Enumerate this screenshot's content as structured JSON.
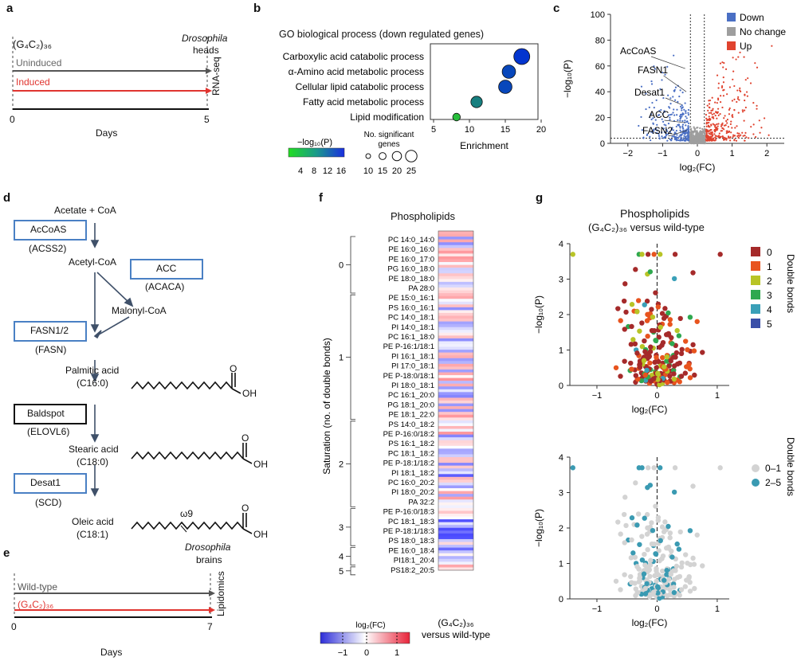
{
  "panel_labels": {
    "a": "a",
    "b": "b",
    "c": "c",
    "d": "d",
    "e": "e",
    "f": "f",
    "g": "g"
  },
  "panel_a": {
    "construct": "(G₄C₂)₃₆",
    "species": "Drosophila",
    "tissue": "heads",
    "assay": "RNA-seq",
    "uninduced": "Uninduced",
    "induced": "Induced",
    "tick0": "0",
    "tick5": "5",
    "xlabel": "Days"
  },
  "panel_b": {
    "title": "GO biological process (down regulated genes)",
    "xlabel": "Enrichment",
    "colorbar_title": "−log₁₀(P)",
    "size_title": "No. significant genes",
    "colorbar_ticks": [
      "4",
      "8",
      "12",
      "16"
    ],
    "size_ticks": [
      "10",
      "15",
      "20",
      "25"
    ],
    "x_ticks": [
      "5",
      "10",
      "15",
      "20"
    ],
    "chart_data": {
      "type": "scatter",
      "categories": [
        "Carboxylic acid catabolic process",
        "α-Amino acid metabolic process",
        "Cellular lipid catabolic process",
        "Fatty acid metabolic process",
        "Lipid modification"
      ],
      "enrichment": [
        17.3,
        15.5,
        15.0,
        11.0,
        8.2
      ],
      "neg_log10_p": [
        15,
        13.5,
        13.5,
        9,
        4
      ],
      "n_genes": [
        25,
        21,
        21,
        18,
        12
      ],
      "xlim": [
        5,
        20
      ]
    }
  },
  "panel_c": {
    "ylabel": "−log₁₀(P)",
    "xlabel": "log₂(FC)",
    "y_ticks": [
      "0",
      "20",
      "40",
      "60",
      "80",
      "100"
    ],
    "x_ticks": [
      "−2",
      "−1",
      "0",
      "1",
      "2"
    ],
    "legend": [
      {
        "label": "Down",
        "color": "#4a6fc4"
      },
      {
        "label": "No change",
        "color": "#9e9e9e"
      },
      {
        "label": "Up",
        "color": "#e0432f"
      }
    ],
    "genes": [
      "AcCoAS",
      "FASN1",
      "Desat1",
      "ACC",
      "FASN2"
    ]
  },
  "panel_d": {
    "acetate": "Acetate + CoA",
    "accoas": "AcCoAS",
    "acss2": "(ACSS2)",
    "acetyl": "Acetyl-CoA",
    "acc": "ACC",
    "acaca": "(ACACA)",
    "malonyl": "Malonyl-CoA",
    "fasn": "FASN1/2",
    "fasn_h": "(FASN)",
    "palmitic": "Palmitic acid",
    "c160": "(C16:0)",
    "baldspot": "Baldspot",
    "elovl6": "(ELOVL6)",
    "stearic": "Stearic acid",
    "c180": "(C18:0)",
    "desat1": "Desat1",
    "scd": "(SCD)",
    "oleic": "Oleic acid",
    "c181": "(C18:1)",
    "o": "O",
    "oh": "OH",
    "omega": "ω9"
  },
  "panel_e": {
    "species": "Drosophila",
    "tissue": "brains",
    "assay": "Lipidomics",
    "wildtype": "Wild-type",
    "construct": "(G₄C₂)₃₆",
    "tick0": "0",
    "tick7": "7",
    "xlabel": "Days"
  },
  "panel_f": {
    "title": "Phospholipids",
    "ylabel": "Saturation (no. of double bonds)",
    "groups": [
      "0",
      "1",
      "2",
      "3",
      "4",
      "5"
    ],
    "lipids": [
      "PC 14:0_14:0",
      "PE 16:0_16:0",
      "PE 16:0_17:0",
      "PG 16:0_18:0",
      "PE 18:0_18:0",
      "PA 28:0",
      "PE 15:0_16:1",
      "PS 16:0_16:1",
      "PC 14:0_18:1",
      "PI 14:0_18:1",
      "PC 16:1_18:0",
      "PE P-16:1/18:1",
      "PI 16:1_18:1",
      "PI 17:0_18:1",
      "PE P-18:0/18:1",
      "PI 18:0_18:1",
      "PC 16:1_20:0",
      "PG 18:1_20:0",
      "PE 18:1_22:0",
      "PS 14:0_18:2",
      "PE P-16:0/18:2",
      "PS 16:1_18:2",
      "PC 18:1_18:2",
      "PE P-18:1/18:2",
      "PI 18:1_18:2",
      "PC 16:0_20:2",
      "PI 18:0_20:2",
      "PA 32:2",
      "PE P-16:0/18:3",
      "PC 18:1_18:3",
      "PE P-18:1/18:3",
      "PS 18:0_18:3",
      "PE 16:0_18:4",
      "PI18:1_20:4",
      "PS18:2_20:5"
    ],
    "colorbar_title": "log₂(FC)",
    "colorbar_ticks": [
      "−1",
      "0",
      "1"
    ],
    "xlabel_line1": "(G₄C₂)₃₆",
    "xlabel_line2": "versus wild-type"
  },
  "panel_g": {
    "title_line1": "Phospholipids",
    "title_line2": "(G₄C₂)₃₆ versus wild-type",
    "ylabel": "−log₁₀(P)",
    "xlabel": "log₂(FC)",
    "y_ticks": [
      "0",
      "1",
      "2",
      "3",
      "4"
    ],
    "x_ticks": [
      "−1",
      "0",
      "1"
    ],
    "legend_title": "Double bonds",
    "legend_top": [
      {
        "label": "0",
        "color": "#a52a2a"
      },
      {
        "label": "1",
        "color": "#e8541e"
      },
      {
        "label": "2",
        "color": "#b8c426"
      },
      {
        "label": "3",
        "color": "#2fa84f"
      },
      {
        "label": "4",
        "color": "#3aa0b8"
      },
      {
        "label": "5",
        "color": "#3a4fa8"
      }
    ],
    "legend_bottom": [
      {
        "label": "0–1",
        "color": "#d3d3d3"
      },
      {
        "label": "2–5",
        "color": "#3a9ab2"
      }
    ]
  }
}
